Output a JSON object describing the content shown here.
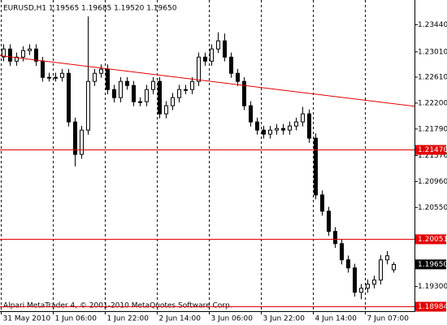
{
  "chart_data": {
    "type": "candlestick",
    "title": "EURUSD,H1  1.19565 1.19685 1.19520 1.19650",
    "footer": "Alpari MetaTrader 4, © 2001-2010 MetaQuotes Software Corp.",
    "categories": [
      "31 May 2010",
      null,
      null,
      null,
      null,
      null,
      null,
      null,
      "1 Jun 06:00",
      null,
      null,
      null,
      null,
      null,
      null,
      null,
      "1 Jun 22:00",
      null,
      null,
      null,
      null,
      null,
      null,
      null,
      "2 Jun 14:00",
      null,
      null,
      null,
      null,
      null,
      null,
      null,
      "3 Jun 06:00",
      null,
      null,
      null,
      null,
      null,
      null,
      null,
      "3 Jun 22:00",
      null,
      null,
      null,
      null,
      null,
      null,
      null,
      "4 Jun 14:00",
      null,
      null,
      null,
      null,
      null,
      null,
      null,
      "7 Jun 07:00",
      null,
      null,
      null,
      null
    ],
    "open": [
      1.2293,
      1.23055,
      1.22863,
      1.22927,
      1.2303,
      1.23055,
      1.22863,
      1.22607,
      1.22607,
      1.22607,
      1.22671,
      1.21902,
      1.21389,
      1.21773,
      1.22543,
      1.22671,
      1.22735,
      1.22414,
      1.22286,
      1.22543,
      1.22478,
      1.22222,
      1.22222,
      1.22414,
      1.22543,
      1.2203,
      1.22158,
      1.22286,
      1.22414,
      1.22414,
      1.22543,
      1.22927,
      1.22863,
      1.23055,
      1.23184,
      1.22927,
      1.22671,
      1.22543,
      1.22158,
      1.21902,
      1.21773,
      1.21709,
      1.21773,
      1.21799,
      1.21773,
      1.21837,
      1.21902,
      1.2203,
      1.21645,
      1.20748,
      1.20491,
      1.20171,
      1.19978,
      1.19722,
      1.19594,
      1.19209,
      1.19273,
      1.19337,
      1.19402,
      1.19722,
      1.19565
    ],
    "high": [
      1.2313,
      1.2313,
      1.23,
      1.231,
      1.2313,
      1.2313,
      1.2293,
      1.2268,
      1.2268,
      1.2274,
      1.2274,
      1.2197,
      1.2184,
      1.2357,
      1.2274,
      1.2281,
      1.2281,
      1.2249,
      1.2261,
      1.2261,
      1.2255,
      1.2229,
      1.2249,
      1.2261,
      1.2261,
      1.2223,
      1.2236,
      1.2249,
      1.2249,
      1.2261,
      1.23,
      1.23,
      1.2313,
      1.2332,
      1.233,
      1.23,
      1.2274,
      1.2261,
      1.2223,
      1.2197,
      1.2184,
      1.2184,
      1.2187,
      1.2187,
      1.2191,
      1.2197,
      1.2214,
      1.221,
      1.2172,
      1.2082,
      1.2056,
      1.2024,
      1.2005,
      1.1979,
      1.1966,
      1.1934,
      1.1941,
      1.1947,
      1.198,
      1.1986,
      1.19685
    ],
    "low": [
      1.2286,
      1.2279,
      1.2279,
      1.2286,
      1.2296,
      1.2279,
      1.2254,
      1.2254,
      1.2254,
      1.2254,
      1.2183,
      1.212,
      1.2132,
      1.217,
      1.2247,
      1.226,
      1.2234,
      1.2221,
      1.2221,
      1.2241,
      1.2215,
      1.2215,
      1.2215,
      1.2234,
      1.2196,
      1.2196,
      1.2209,
      1.2221,
      1.2234,
      1.2234,
      1.2247,
      1.2279,
      1.2279,
      1.2299,
      1.2286,
      1.226,
      1.2247,
      1.2209,
      1.2183,
      1.217,
      1.2164,
      1.2164,
      1.217,
      1.217,
      1.217,
      1.2177,
      1.2183,
      1.2157,
      1.2068,
      1.2042,
      1.201,
      1.1991,
      1.1965,
      1.1952,
      1.1914,
      1.191,
      1.192,
      1.1927,
      1.1933,
      1.1965,
      1.1952
    ],
    "close": [
      1.23055,
      1.22863,
      1.22927,
      1.2303,
      1.23055,
      1.22863,
      1.22607,
      1.22607,
      1.22607,
      1.22671,
      1.21902,
      1.21389,
      1.21773,
      1.22543,
      1.22671,
      1.22735,
      1.22414,
      1.22286,
      1.22543,
      1.22478,
      1.22222,
      1.22222,
      1.22414,
      1.22543,
      1.2203,
      1.22158,
      1.22286,
      1.22414,
      1.22414,
      1.22543,
      1.22927,
      1.22863,
      1.23055,
      1.23184,
      1.22927,
      1.22671,
      1.22543,
      1.22158,
      1.21902,
      1.21773,
      1.21709,
      1.21773,
      1.21799,
      1.21773,
      1.21837,
      1.21902,
      1.2203,
      1.21645,
      1.20748,
      1.20491,
      1.20171,
      1.19978,
      1.19722,
      1.19594,
      1.19209,
      1.19273,
      1.19337,
      1.19402,
      1.19722,
      1.19786,
      1.1965
    ],
    "ylim": [
      1.1891,
      1.2383
    ],
    "yticks": [
      {
        "value": 1.2344,
        "label": "1.23440"
      },
      {
        "value": 1.2301,
        "label": "1.23010"
      },
      {
        "value": 1.2261,
        "label": "1.22610"
      },
      {
        "value": 1.222,
        "label": "1.22200"
      },
      {
        "value": 1.2179,
        "label": "1.21790"
      },
      {
        "value": 1.2137,
        "label": "1.21370"
      },
      {
        "value": 1.2096,
        "label": "1.20960"
      },
      {
        "value": 1.2055,
        "label": "1.20550"
      },
      {
        "value": 1.193,
        "label": "1.19300"
      }
    ],
    "levels": [
      {
        "value": 1.2147,
        "label": "1.21470"
      },
      {
        "value": 1.20051,
        "label": "1.20051"
      },
      {
        "value": 1.18984,
        "label": "1.18984"
      }
    ],
    "level_color": "#e00000",
    "current_price": {
      "value": 1.1965,
      "label": "1.19650"
    },
    "trendline": {
      "x": [
        -0.5,
        63.25
      ],
      "values": [
        1.2295,
        1.2215
      ],
      "color": "#e00000"
    },
    "grid": true
  }
}
